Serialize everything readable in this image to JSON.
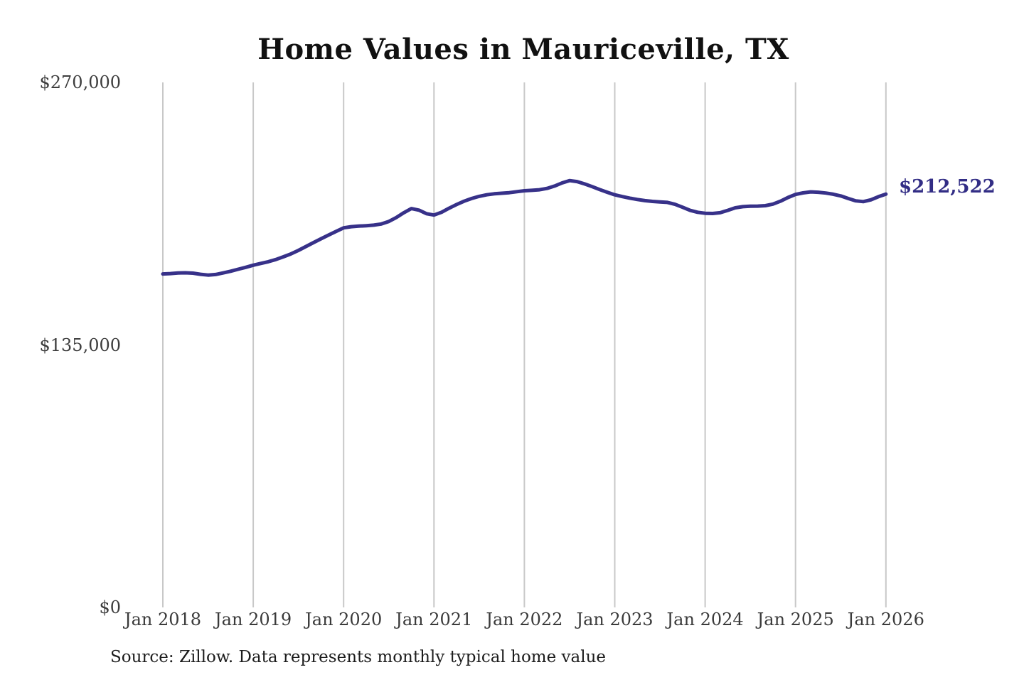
{
  "chart": {
    "title": "Home Values in Mauriceville, TX",
    "end_label": "$212,522",
    "source": "Source: Zillow. Data represents monthly typical home value",
    "colors": {
      "line": "#373189",
      "annotation": "#322d85",
      "grid": "#c8c8c8",
      "tick_label": "#3a3a3a",
      "title": "#111111"
    }
  },
  "chart_data": {
    "type": "line",
    "title": "Home Values in Mauriceville, TX",
    "xlabel": "",
    "ylabel": "",
    "x_interval": "monthly",
    "x_range": [
      "Jan 2018",
      "Jan 2026"
    ],
    "x_tick_labels": [
      "Jan 2018",
      "Jan 2019",
      "Jan 2020",
      "Jan 2021",
      "Jan 2022",
      "Jan 2023",
      "Jan 2024",
      "Jan 2025",
      "Jan 2026"
    ],
    "y_ticks": [
      {
        "value": 0,
        "label": "$0"
      },
      {
        "value": 135000,
        "label": "$135,000"
      },
      {
        "value": 270000,
        "label": "$270,000"
      }
    ],
    "ylim": [
      0,
      270000
    ],
    "grid": "vertical-only",
    "legend": "none",
    "annotation": {
      "text": "$212,522",
      "value": 212522,
      "x": "Jan 2026"
    },
    "series": [
      {
        "name": "monthly typical home value",
        "values": [
          171500,
          171700,
          172000,
          172100,
          171900,
          171300,
          170900,
          171200,
          172000,
          172900,
          173900,
          174900,
          176000,
          176900,
          177800,
          178900,
          180300,
          181800,
          183600,
          185600,
          187600,
          189600,
          191500,
          193400,
          195200,
          195800,
          196100,
          196300,
          196600,
          197200,
          198500,
          200500,
          203000,
          205100,
          204300,
          202500,
          201800,
          203200,
          205300,
          207200,
          208900,
          210300,
          211400,
          212200,
          212700,
          213000,
          213300,
          213800,
          214300,
          214500,
          214800,
          215500,
          216700,
          218300,
          219500,
          219000,
          217800,
          216400,
          214900,
          213500,
          212200,
          211300,
          210500,
          209800,
          209200,
          208800,
          208500,
          208300,
          207300,
          205800,
          204200,
          203200,
          202700,
          202600,
          203000,
          204200,
          205500,
          206100,
          206300,
          206400,
          206600,
          207400,
          208900,
          210800,
          212400,
          213200,
          213700,
          213500,
          213100,
          212500,
          211600,
          210300,
          209100,
          208700,
          209600,
          211200,
          212522
        ]
      }
    ]
  }
}
